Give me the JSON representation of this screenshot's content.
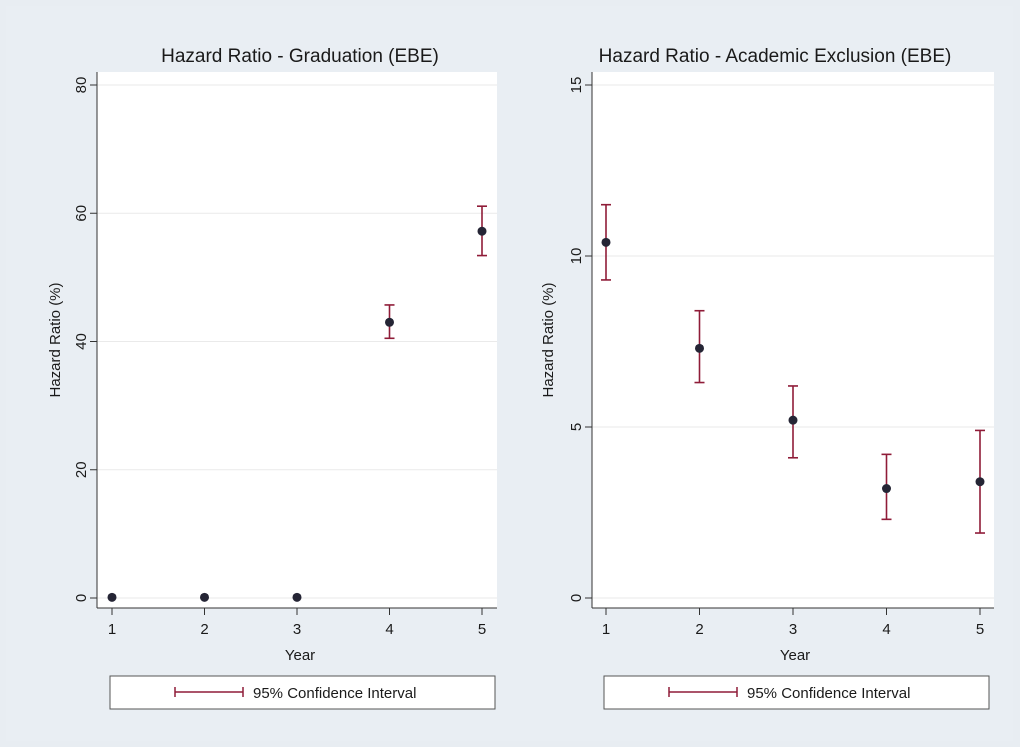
{
  "chart_data": [
    {
      "type": "scatter",
      "title": "Hazard Ratio - Graduation (EBE)",
      "xlabel": "Year",
      "ylabel": "Hazard Ratio (%)",
      "x": [
        1,
        2,
        3,
        4,
        5
      ],
      "xticks": [
        "1",
        "2",
        "3",
        "4",
        "5"
      ],
      "yticks": [
        0,
        20,
        40,
        60,
        80
      ],
      "ylim": [
        0,
        80
      ],
      "series": [
        {
          "values": [
            0.1,
            0.1,
            0.1,
            43,
            57.2
          ],
          "ci_low": [
            0.1,
            0.1,
            0.1,
            40.5,
            53.4
          ],
          "ci_high": [
            0.1,
            0.1,
            0.1,
            45.7,
            61.1
          ]
        }
      ],
      "legend": [
        "95% Confidence Interval"
      ],
      "legend_position": "bottom",
      "grid": true,
      "colors": {
        "marker": "#252535",
        "ci": "#8f1c38",
        "grid": "#eaeaea",
        "plot_bg": "#ffffff"
      }
    },
    {
      "type": "scatter",
      "title": "Hazard Ratio - Academic Exclusion (EBE)",
      "xlabel": "Year",
      "ylabel": "Hazard Ratio (%)",
      "x": [
        1,
        2,
        3,
        4,
        5
      ],
      "xticks": [
        "1",
        "2",
        "3",
        "4",
        "5"
      ],
      "yticks": [
        0,
        5,
        10,
        15
      ],
      "ylim": [
        0,
        15
      ],
      "series": [
        {
          "values": [
            10.4,
            7.3,
            5.2,
            3.2,
            3.4
          ],
          "ci_low": [
            9.3,
            6.3,
            4.1,
            2.3,
            1.9
          ],
          "ci_high": [
            11.5,
            8.4,
            6.2,
            4.2,
            4.9
          ]
        }
      ],
      "legend": [
        "95% Confidence Interval"
      ],
      "legend_position": "bottom",
      "grid": true,
      "colors": {
        "marker": "#252535",
        "ci": "#8f1c38",
        "grid": "#eaeaea",
        "plot_bg": "#ffffff"
      }
    }
  ]
}
